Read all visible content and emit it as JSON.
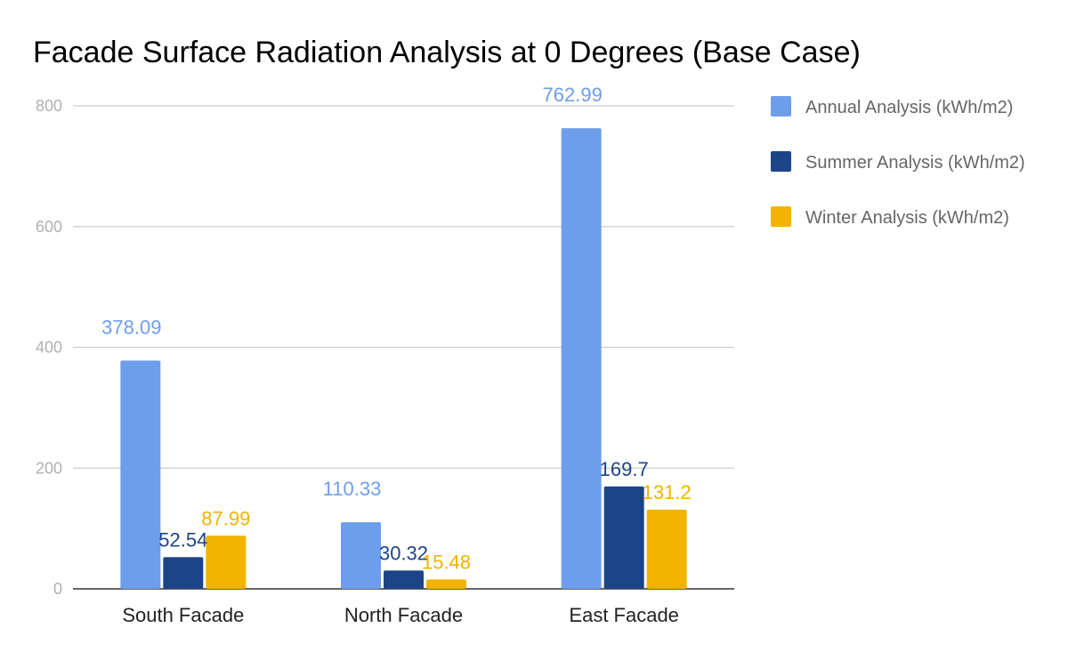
{
  "chart_data": {
    "type": "bar",
    "title": "Facade Surface Radiation Analysis at 0 Degrees (Base Case)",
    "xlabel": "",
    "ylabel": "",
    "categories": [
      "South Facade",
      "North Facade",
      "East Facade"
    ],
    "series": [
      {
        "name": "Annual Analysis (kWh/m2)",
        "values": [
          378.09,
          110.33,
          762.99
        ],
        "labels": [
          "378.09",
          "110.33",
          "762.99"
        ],
        "color": "#6d9eeb"
      },
      {
        "name": "Summer Analysis (kWh/m2)",
        "values": [
          52.54,
          30.32,
          169.7
        ],
        "labels": [
          "52.54",
          "30.32",
          "169.7"
        ],
        "color": "#1c4587"
      },
      {
        "name": "Winter Analysis (kWh/m2)",
        "values": [
          87.99,
          15.48,
          131.2
        ],
        "labels": [
          "87.99",
          "15.48",
          "131.2"
        ],
        "color": "#f1b300"
      }
    ],
    "ylim": [
      0,
      800
    ],
    "yticks": [
      "0",
      "200",
      "400",
      "600",
      "800"
    ],
    "grid": true,
    "legend": "right"
  }
}
